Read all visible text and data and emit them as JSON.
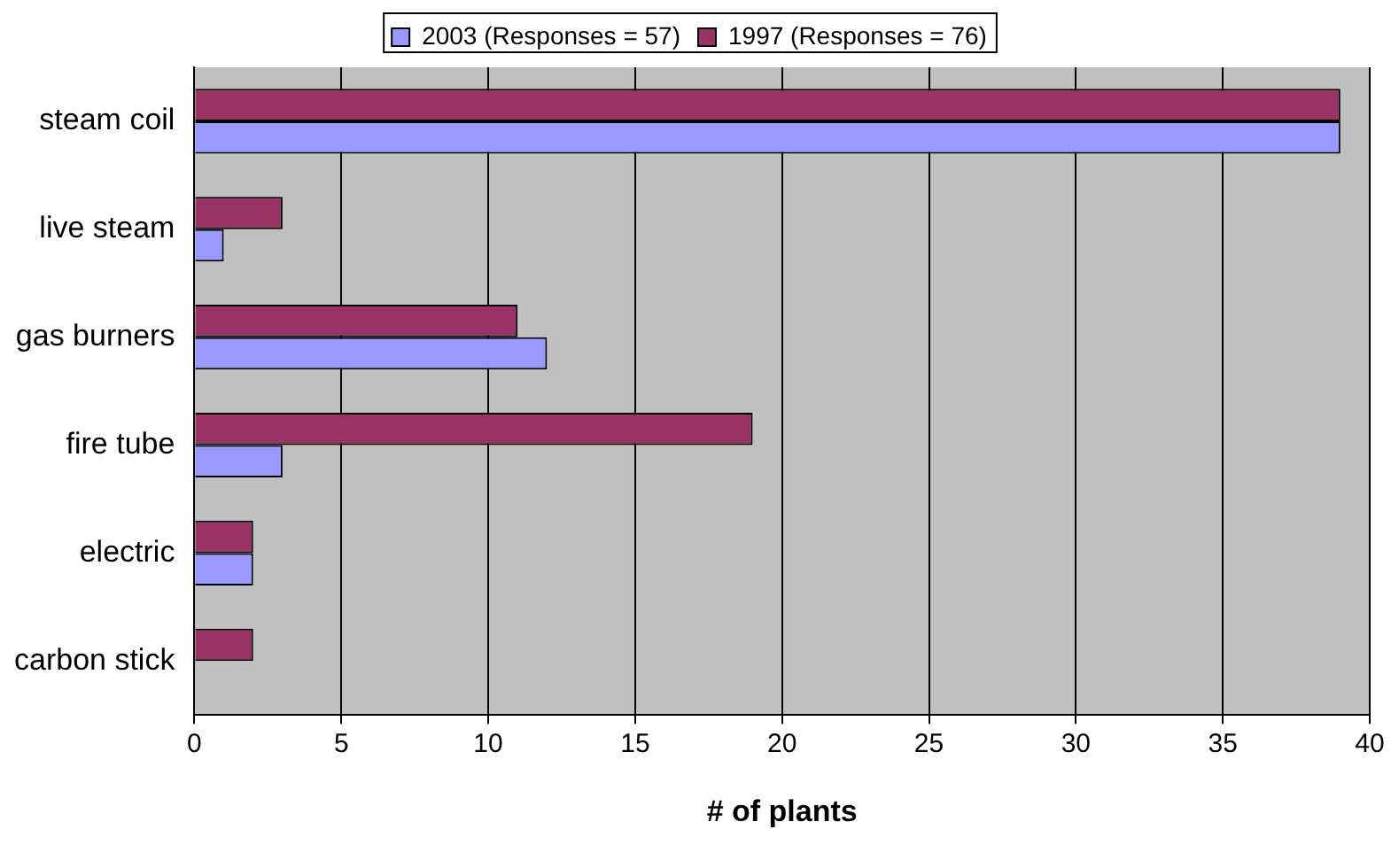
{
  "chart_data": {
    "type": "bar",
    "orientation": "horizontal",
    "xlabel": "# of plants",
    "categories": [
      "steam coil",
      "live steam",
      "gas burners",
      "fire tube",
      "electric",
      "carbon stick"
    ],
    "series": [
      {
        "name": "2003 (Responses = 57)",
        "color": "#9999ff",
        "values": [
          39,
          1,
          12,
          3,
          2,
          0
        ]
      },
      {
        "name": "1997 (Responses = 76)",
        "color": "#993366",
        "values": [
          39,
          3,
          11,
          19,
          2,
          2
        ]
      }
    ],
    "xlim": [
      0,
      40
    ],
    "xticks": [
      0,
      5,
      10,
      15,
      20,
      25,
      30,
      35,
      40
    ],
    "grid": "x",
    "legend": "top"
  }
}
